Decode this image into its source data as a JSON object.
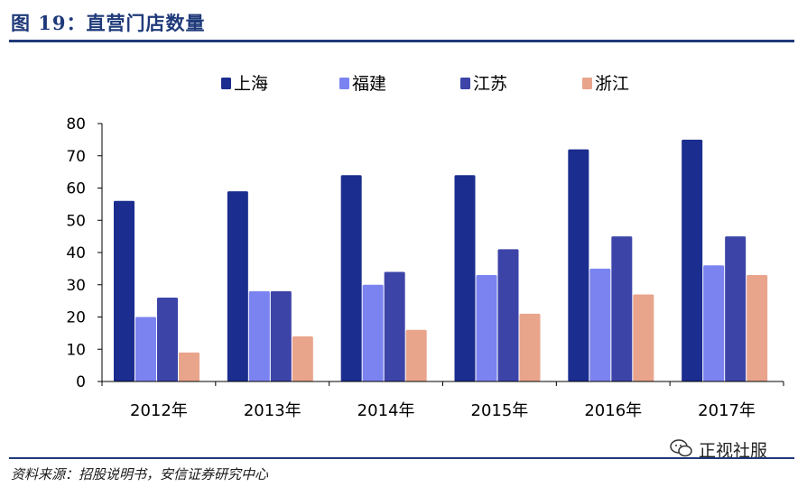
{
  "figure": {
    "title": "图 19：直营门店数量",
    "source": "资料来源：招股说明书，安信证券研究中心",
    "watermark": "正视社服"
  },
  "chart_data": {
    "type": "bar",
    "title": "",
    "xlabel": "",
    "ylabel": "",
    "categories": [
      "2012年",
      "2013年",
      "2014年",
      "2015年",
      "2016年",
      "2017年"
    ],
    "series": [
      {
        "name": "上海",
        "color": "#1b2d8e",
        "values": [
          56,
          59,
          64,
          64,
          72,
          75
        ]
      },
      {
        "name": "福建",
        "color": "#7b83f0",
        "values": [
          20,
          28,
          30,
          33,
          35,
          36
        ]
      },
      {
        "name": "江苏",
        "color": "#3d44a8",
        "values": [
          26,
          28,
          34,
          41,
          45,
          45
        ]
      },
      {
        "name": "浙江",
        "color": "#e9a48c",
        "values": [
          9,
          14,
          16,
          21,
          27,
          33
        ]
      }
    ],
    "ylim": [
      0,
      80
    ],
    "yticks": [
      0,
      10,
      20,
      30,
      40,
      50,
      60,
      70,
      80
    ],
    "grid": false,
    "legend_position": "top"
  }
}
